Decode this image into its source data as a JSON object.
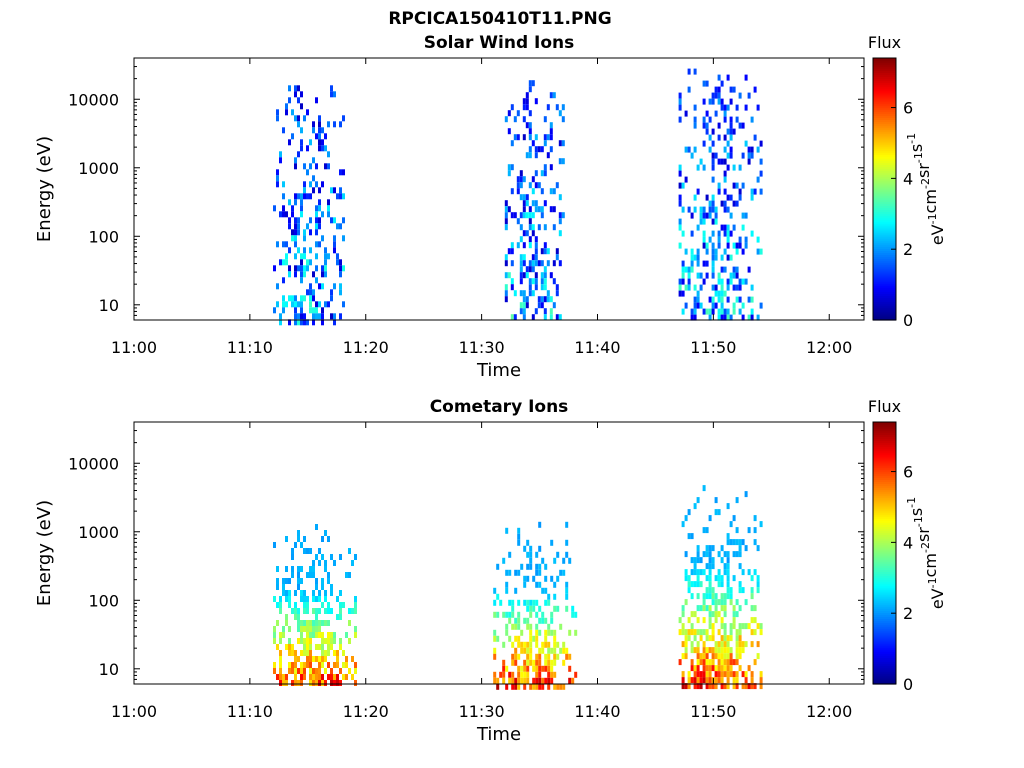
{
  "figure_title": "RPCICA150410T11.PNG",
  "colorbar_colors": [
    "#000080",
    "#0000ff",
    "#0080ff",
    "#00ffff",
    "#80ff80",
    "#ffff00",
    "#ff8000",
    "#ff0000",
    "#800000"
  ],
  "chart_data": [
    {
      "type": "heatmap",
      "title": "Solar Wind Ions",
      "xlabel": "Time",
      "ylabel": "Energy (eV)",
      "yscale": "log",
      "x_ticks": [
        "11:00",
        "11:10",
        "11:20",
        "11:30",
        "11:40",
        "11:50",
        "12:00"
      ],
      "x_range": [
        "11:00",
        "12:03"
      ],
      "y_ticks": [
        "10",
        "100",
        "1000",
        "10000"
      ],
      "y_range": [
        6,
        40000
      ],
      "colorbar": {
        "label_top": "Flux",
        "label": "eV-1cm-2sr-1s-1",
        "ticks": [
          "0",
          "2",
          "4",
          "6"
        ],
        "range": [
          0,
          7.4
        ]
      },
      "bursts": [
        {
          "start": "11:12",
          "end": "11:18",
          "energy_range_eV": [
            6,
            16000
          ],
          "flux_range": [
            0.5,
            3.5
          ]
        },
        {
          "start": "11:32",
          "end": "11:37",
          "energy_range_eV": [
            6,
            19000
          ],
          "flux_range": [
            0.5,
            3.5
          ]
        },
        {
          "start": "11:47",
          "end": "11:54",
          "energy_range_eV": [
            6,
            28000
          ],
          "flux_range": [
            0.5,
            3.5
          ]
        }
      ]
    },
    {
      "type": "heatmap",
      "title": "Cometary Ions",
      "xlabel": "Time",
      "ylabel": "Energy (eV)",
      "yscale": "log",
      "x_ticks": [
        "11:00",
        "11:10",
        "11:20",
        "11:30",
        "11:40",
        "11:50",
        "12:00"
      ],
      "x_range": [
        "11:00",
        "12:03"
      ],
      "y_ticks": [
        "10",
        "100",
        "1000",
        "10000"
      ],
      "y_range": [
        6,
        40000
      ],
      "colorbar": {
        "label_top": "Flux",
        "label": "eV-1cm-2sr-1s-1",
        "ticks": [
          "0",
          "2",
          "4",
          "6"
        ],
        "range": [
          0,
          7.4
        ]
      },
      "bursts": [
        {
          "start": "11:12",
          "end": "11:19",
          "energy_range_eV": [
            6,
            1300
          ],
          "flux_range": [
            1.5,
            7.2
          ]
        },
        {
          "start": "11:31",
          "end": "11:38",
          "energy_range_eV": [
            6,
            1400
          ],
          "flux_range": [
            1.5,
            7.2
          ]
        },
        {
          "start": "11:47",
          "end": "11:54",
          "energy_range_eV": [
            6,
            4800
          ],
          "flux_range": [
            1.5,
            7.2
          ]
        }
      ]
    }
  ]
}
